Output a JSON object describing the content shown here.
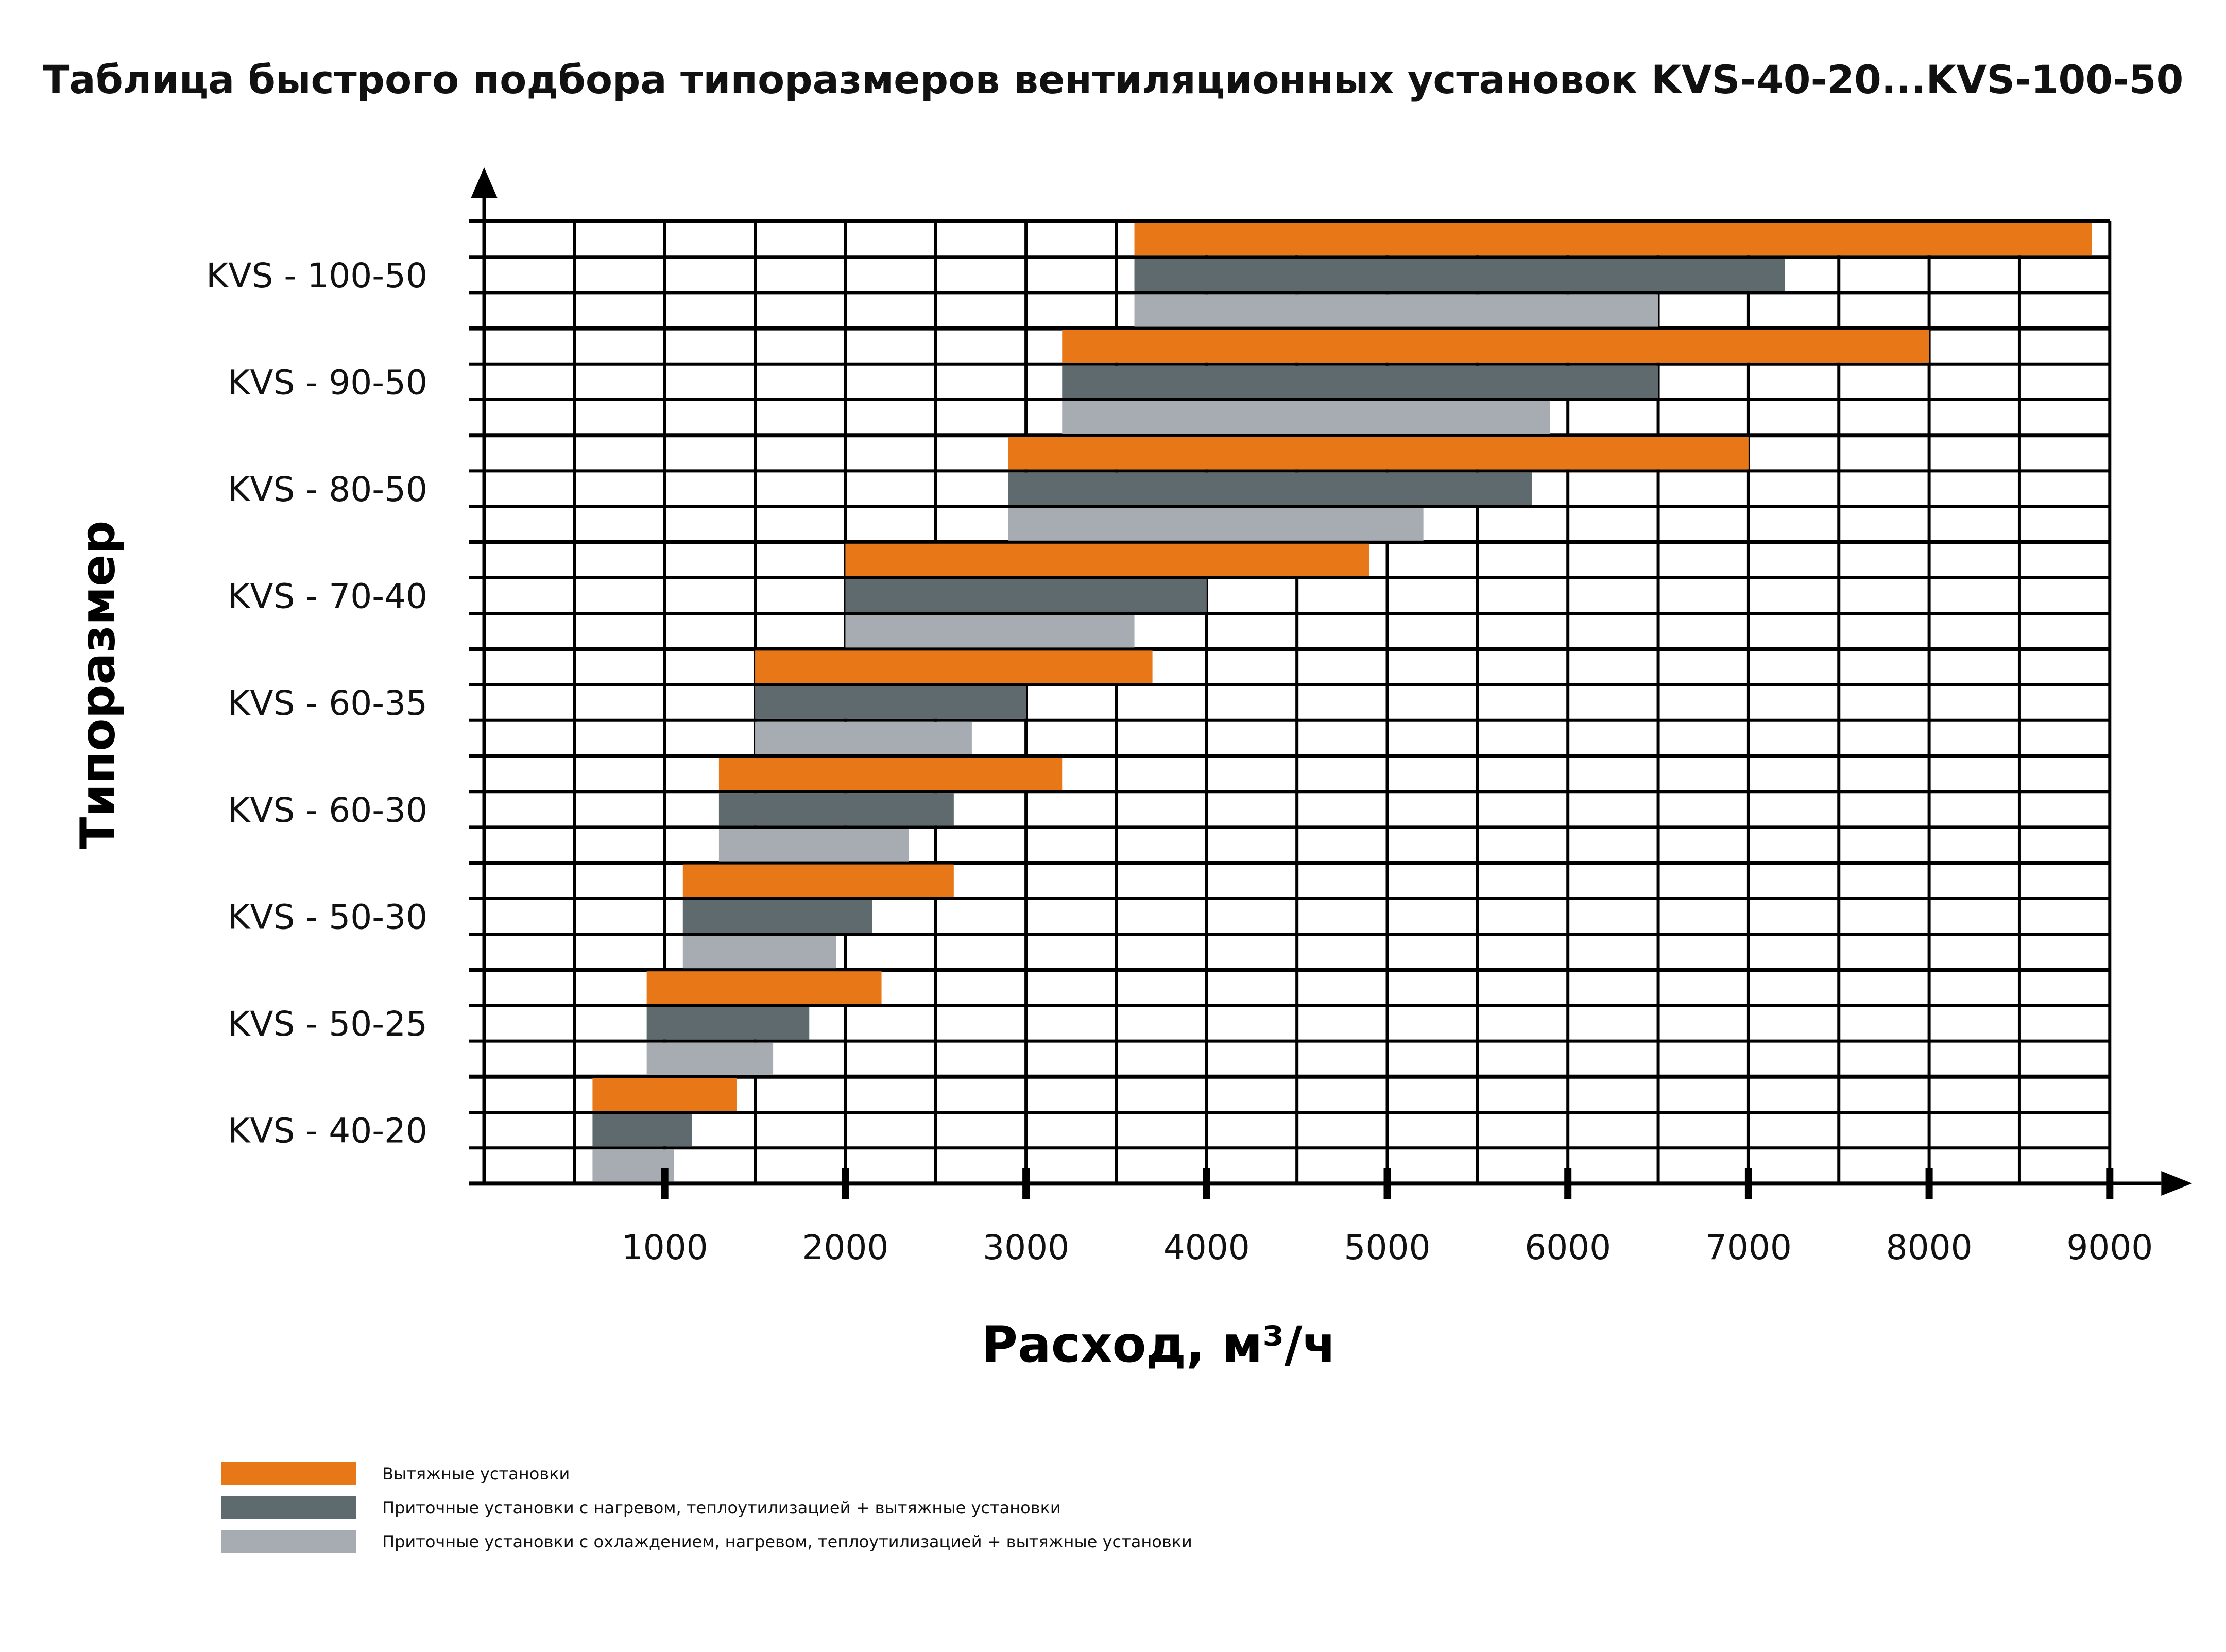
{
  "chart_data": {
    "type": "bar",
    "orientation": "horizontal-range",
    "title": "Таблица быстрого подбора типоразмеров вентиляционных установок KVS-40-20...KVS-100-50",
    "xlabel": "Расход, м³/ч",
    "ylabel": "Типоразмер",
    "xlim": [
      0,
      9000
    ],
    "xticks": [
      1000,
      2000,
      3000,
      4000,
      5000,
      6000,
      7000,
      8000,
      9000
    ],
    "grid": true,
    "categories": [
      "KVS - 100-50",
      "KVS - 90-50",
      "KVS - 80-50",
      "KVS - 70-40",
      "KVS - 60-35",
      "KVS - 60-30",
      "KVS - 50-30",
      "KVS - 50-25",
      "KVS - 40-20"
    ],
    "series": [
      {
        "name": "Вытяжные установки",
        "color": "#e87817",
        "ranges": [
          [
            3600,
            8900
          ],
          [
            3200,
            8000
          ],
          [
            2900,
            7000
          ],
          [
            2000,
            4900
          ],
          [
            1500,
            3700
          ],
          [
            1300,
            3200
          ],
          [
            1100,
            2600
          ],
          [
            900,
            2200
          ],
          [
            600,
            1400
          ]
        ]
      },
      {
        "name": "Приточные установки с нагревом, теплоутилизацией + вытяжные установки",
        "color": "#5f6a6f",
        "ranges": [
          [
            3600,
            7200
          ],
          [
            3200,
            6500
          ],
          [
            2900,
            5800
          ],
          [
            2000,
            4000
          ],
          [
            1500,
            3000
          ],
          [
            1300,
            2600
          ],
          [
            1100,
            2150
          ],
          [
            900,
            1800
          ],
          [
            600,
            1150
          ]
        ]
      },
      {
        "name": "Приточные установки с охлаждением, нагревом, теплоутилизацией + вытяжные установки",
        "color": "#a6acb1",
        "ranges": [
          [
            3600,
            6500
          ],
          [
            3200,
            5900
          ],
          [
            2900,
            5200
          ],
          [
            2000,
            3600
          ],
          [
            1500,
            2700
          ],
          [
            1300,
            2350
          ],
          [
            1100,
            1950
          ],
          [
            900,
            1600
          ],
          [
            600,
            1050
          ]
        ]
      }
    ],
    "legend": "bottom-left"
  }
}
